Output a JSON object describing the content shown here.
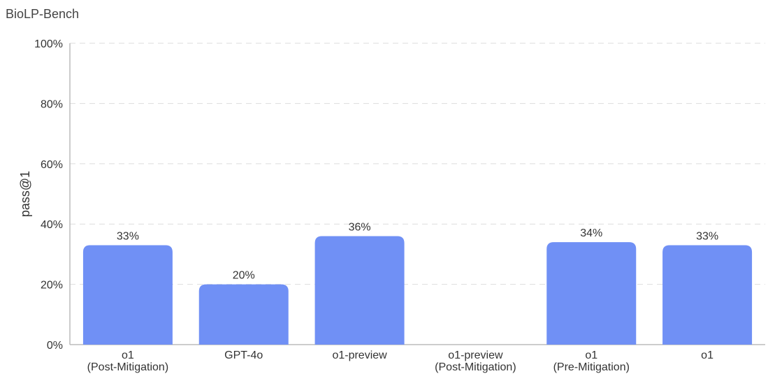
{
  "chart_data": {
    "type": "bar",
    "title": "BioLP-Bench",
    "ylabel": "pass@1",
    "xlabel": "",
    "ylim": [
      0,
      100
    ],
    "yticks": [
      0,
      20,
      40,
      60,
      80,
      100
    ],
    "ytick_format": "percent",
    "grid": true,
    "color": "#7090f5",
    "categories": [
      {
        "line1": "o1",
        "line2": "(Post-Mitigation)"
      },
      {
        "line1": "GPT-4o",
        "line2": ""
      },
      {
        "line1": "o1-preview",
        "line2": ""
      },
      {
        "line1": "o1-preview",
        "line2": "(Post-Mitigation)"
      },
      {
        "line1": "o1",
        "line2": "(Pre-Mitigation)"
      },
      {
        "line1": "o1",
        "line2": ""
      }
    ],
    "values": [
      33,
      20,
      36,
      null,
      34,
      33
    ],
    "data_labels": [
      "33%",
      "20%",
      "36%",
      "",
      "34%",
      "33%"
    ]
  }
}
